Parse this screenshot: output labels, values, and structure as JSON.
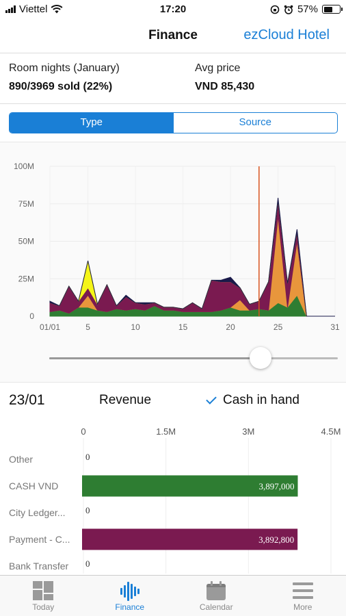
{
  "status_bar": {
    "carrier": "Viettel",
    "time": "17:20",
    "battery": "57%",
    "battery_level": 0.57
  },
  "nav": {
    "title": "Finance",
    "hotel": "ezCloud Hotel"
  },
  "summary": {
    "room_nights_label": "Room nights (January)",
    "room_nights_value": "890/3969 sold (22%)",
    "avg_price_label": "Avg price",
    "avg_price_value": "VND 85,430"
  },
  "segment": {
    "options": [
      "Type",
      "Source"
    ],
    "selected": "Type"
  },
  "chart_data": [
    {
      "type": "area",
      "x": [
        1,
        2,
        3,
        4,
        5,
        6,
        7,
        8,
        9,
        10,
        11,
        12,
        13,
        14,
        15,
        16,
        17,
        18,
        19,
        20,
        21,
        22,
        23,
        24,
        25,
        26,
        27,
        28,
        29,
        30,
        31
      ],
      "x_ticks": [
        "01/01",
        "5",
        "10",
        "15",
        "20",
        "25",
        "31"
      ],
      "x_tick_values": [
        1,
        5,
        10,
        15,
        20,
        25,
        31
      ],
      "y_ticks": [
        "0",
        "25M",
        "50M",
        "75M",
        "100M"
      ],
      "y_tick_values": [
        0,
        25,
        50,
        75,
        100
      ],
      "ylim": [
        0,
        100
      ],
      "unit": "M",
      "stacked": true,
      "selected_x": 23,
      "series": [
        {
          "color": "#2e7d32",
          "values": [
            3,
            4,
            2,
            6,
            6,
            4,
            3,
            5,
            4,
            5,
            4,
            7,
            4,
            4,
            3,
            3,
            3,
            3,
            4,
            6,
            4,
            4,
            5,
            4,
            9,
            6,
            14,
            0,
            0,
            0,
            0
          ]
        },
        {
          "color": "#e8963c",
          "values": [
            0,
            0,
            0,
            0,
            8,
            0,
            0,
            0,
            0,
            0,
            0,
            0,
            0,
            0,
            0,
            0,
            0,
            0,
            0,
            0,
            7,
            0,
            0,
            0,
            58,
            0,
            36,
            0,
            0,
            0,
            0
          ]
        },
        {
          "color": "#7a1a50",
          "values": [
            6,
            3,
            18,
            4,
            5,
            4,
            18,
            2,
            9,
            4,
            4,
            2,
            2,
            2,
            2,
            6,
            2,
            21,
            19,
            17,
            8,
            4,
            5,
            19,
            10,
            16,
            6,
            0,
            0,
            0,
            0
          ]
        },
        {
          "color": "#f5f518",
          "values": [
            0,
            0,
            0,
            0,
            18,
            0,
            0,
            0,
            0,
            0,
            0,
            0,
            0,
            0,
            0,
            0,
            0,
            0,
            0,
            0,
            0,
            0,
            0,
            0,
            0,
            0,
            0,
            0,
            0,
            0,
            0
          ]
        },
        {
          "color": "#1a1a4a",
          "values": [
            1,
            0,
            0,
            0,
            0,
            0,
            0,
            0,
            1,
            0,
            1,
            0,
            0,
            0,
            0,
            0,
            0,
            0,
            1,
            3,
            0,
            0,
            0,
            0,
            2,
            0,
            2,
            0,
            0,
            0,
            0
          ]
        }
      ]
    },
    {
      "type": "bar",
      "orientation": "horizontal",
      "categories": [
        "Other",
        "CASH VND",
        "City Ledger...",
        "Payment - C...",
        "Bank Transfer"
      ],
      "values": [
        0,
        3897000,
        0,
        3892800,
        0
      ],
      "value_labels": [
        "0",
        "3,897,000",
        "0",
        "3,892,800",
        "0"
      ],
      "colors": [
        "#2e7d32",
        "#2e7d32",
        "#2e7d32",
        "#7a1a50",
        "#2e7d32"
      ],
      "x_ticks": [
        "0",
        "1.5M",
        "3M",
        "4.5M"
      ],
      "x_tick_values": [
        0,
        1500000,
        3000000,
        4500000
      ],
      "xlim": [
        0,
        4500000
      ]
    }
  ],
  "slider": {
    "value": 23,
    "min": 1,
    "max": 31
  },
  "detail": {
    "date": "23/01",
    "metric": "Revenue",
    "filter": "Cash in hand"
  },
  "tabs": [
    {
      "label": "Today",
      "icon": "grid-icon",
      "active": false
    },
    {
      "label": "Finance",
      "icon": "waveform-icon",
      "active": true
    },
    {
      "label": "Calendar",
      "icon": "calendar-icon",
      "active": false
    },
    {
      "label": "More",
      "icon": "menu-icon",
      "active": false
    }
  ]
}
